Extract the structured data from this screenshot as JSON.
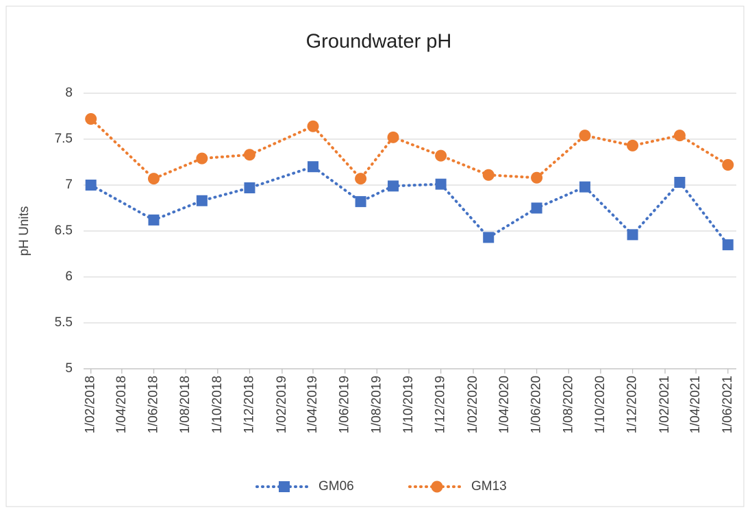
{
  "chart_data": {
    "type": "line",
    "title": "Groundwater pH",
    "ylabel": "pH Units",
    "x": [
      "2018-02-01",
      "2018-06-01",
      "2018-09-01",
      "2018-12-01",
      "2019-04-01",
      "2019-07-01",
      "2019-09-01",
      "2019-12-01",
      "2020-03-01",
      "2020-06-01",
      "2020-09-01",
      "2020-12-01",
      "2021-03-01",
      "2021-06-01"
    ],
    "series": [
      {
        "name": "GM06",
        "color": "#4472c4",
        "marker": "square",
        "values": [
          7.0,
          6.62,
          6.83,
          6.97,
          7.2,
          6.82,
          6.99,
          7.01,
          6.43,
          6.75,
          6.98,
          6.46,
          7.03,
          6.35
        ]
      },
      {
        "name": "GM13",
        "color": "#ed7d31",
        "marker": "circle",
        "values": [
          7.72,
          7.07,
          7.29,
          7.33,
          7.64,
          7.07,
          7.52,
          7.32,
          7.11,
          7.08,
          7.54,
          7.43,
          7.54,
          7.22
        ]
      }
    ],
    "xlim": [
      "2018-01-18",
      "2021-06-17"
    ],
    "xticks": [
      {
        "value": "2018-02-01",
        "label": "1/02/2018"
      },
      {
        "value": "2018-04-01",
        "label": "1/04/2018"
      },
      {
        "value": "2018-06-01",
        "label": "1/06/2018"
      },
      {
        "value": "2018-08-01",
        "label": "1/08/2018"
      },
      {
        "value": "2018-10-01",
        "label": "1/10/2018"
      },
      {
        "value": "2018-12-01",
        "label": "1/12/2018"
      },
      {
        "value": "2019-02-01",
        "label": "1/02/2019"
      },
      {
        "value": "2019-04-01",
        "label": "1/04/2019"
      },
      {
        "value": "2019-06-01",
        "label": "1/06/2019"
      },
      {
        "value": "2019-08-01",
        "label": "1/08/2019"
      },
      {
        "value": "2019-10-01",
        "label": "1/10/2019"
      },
      {
        "value": "2019-12-01",
        "label": "1/12/2019"
      },
      {
        "value": "2020-02-01",
        "label": "1/02/2020"
      },
      {
        "value": "2020-04-01",
        "label": "1/04/2020"
      },
      {
        "value": "2020-06-01",
        "label": "1/06/2020"
      },
      {
        "value": "2020-08-01",
        "label": "1/08/2020"
      },
      {
        "value": "2020-10-01",
        "label": "1/10/2020"
      },
      {
        "value": "2020-12-01",
        "label": "1/12/2020"
      },
      {
        "value": "2021-02-01",
        "label": "1/02/2021"
      },
      {
        "value": "2021-04-01",
        "label": "1/04/2021"
      },
      {
        "value": "2021-06-01",
        "label": "1/06/2021"
      }
    ],
    "ylim": [
      5,
      8
    ],
    "yticks": [
      5,
      5.5,
      6,
      6.5,
      7,
      7.5,
      8
    ],
    "grid": true,
    "legend": "bottom"
  }
}
